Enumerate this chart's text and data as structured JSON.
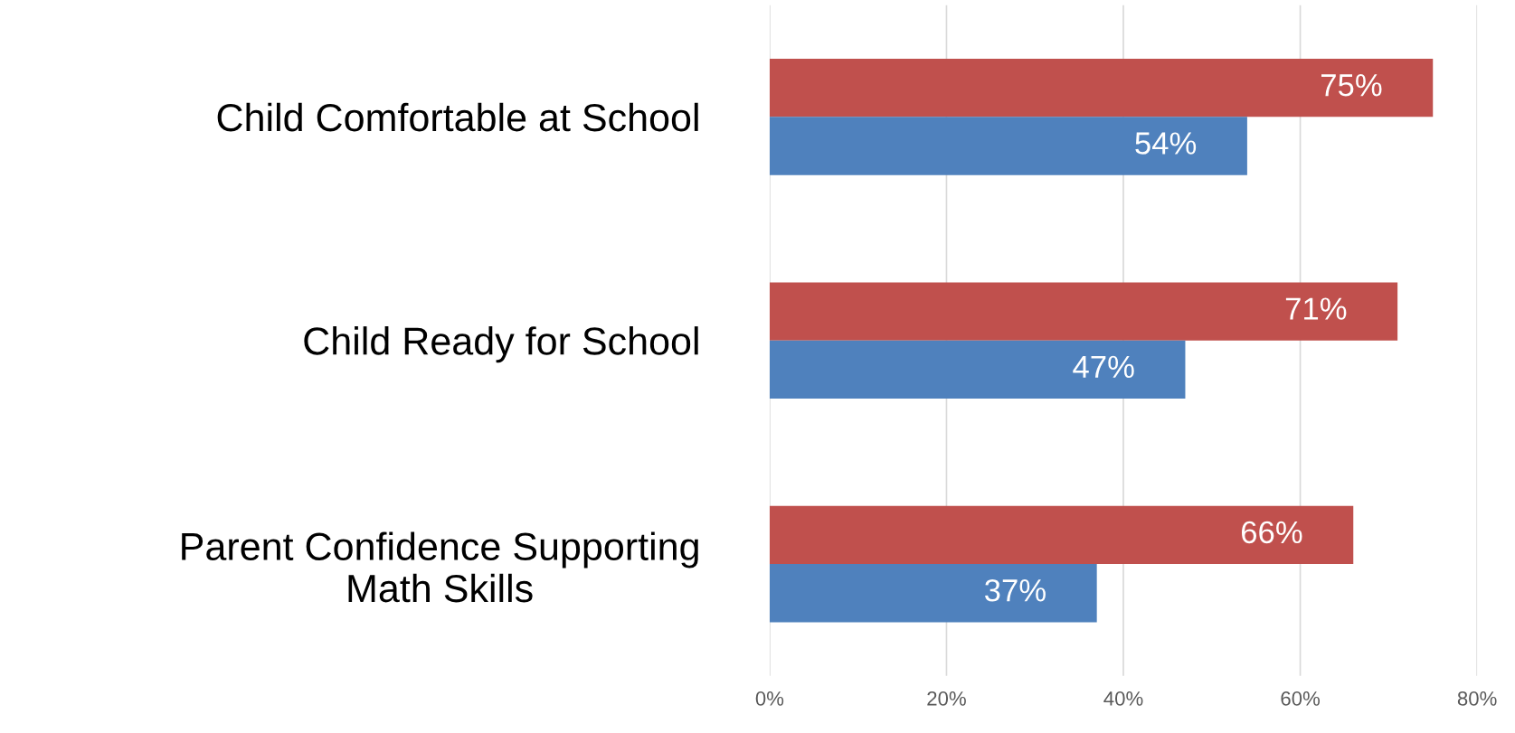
{
  "chart_data": {
    "type": "bar",
    "orientation": "horizontal",
    "categories": [
      "Child Comfortable at School",
      "Child Ready for School",
      "Parent Confidence Supporting\nMath Skills"
    ],
    "series": [
      {
        "color": "#c0504d",
        "values": [
          75,
          71,
          66
        ],
        "value_labels": [
          "75%",
          "71%",
          "66%"
        ]
      },
      {
        "color": "#4f81bd",
        "values": [
          54,
          47,
          37
        ],
        "value_labels": [
          "54%",
          "47%",
          "37%"
        ]
      }
    ],
    "xlim": [
      0,
      80
    ],
    "xticks": [
      {
        "value": 0,
        "label": "0%"
      },
      {
        "value": 20,
        "label": "20%"
      },
      {
        "value": 40,
        "label": "40%"
      },
      {
        "value": 60,
        "label": "60%"
      },
      {
        "value": 80,
        "label": "80%"
      }
    ],
    "grid": "x"
  }
}
